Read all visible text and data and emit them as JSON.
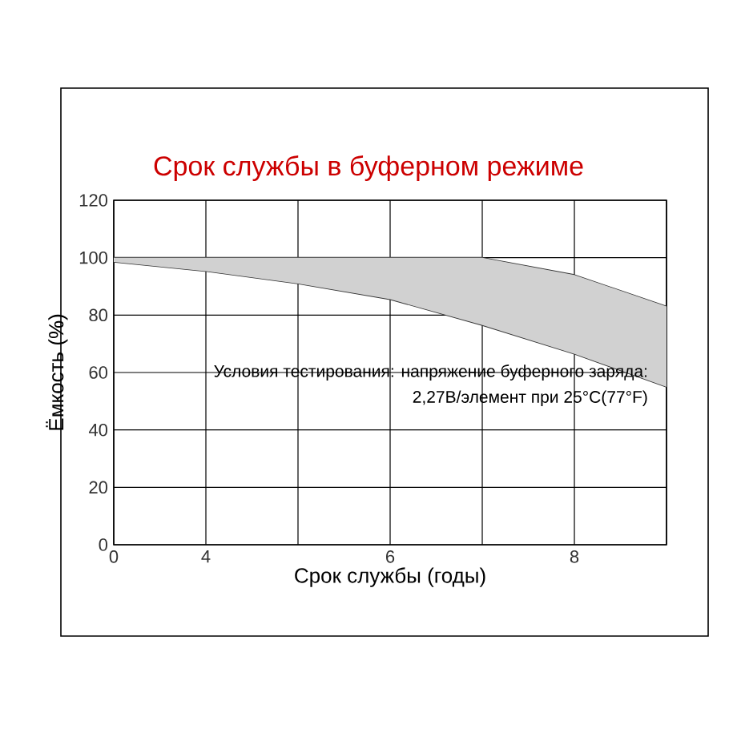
{
  "chart_data": {
    "type": "line",
    "title": "Срок службы в буферном режиме",
    "xlabel": "Срок службы (годы)",
    "ylabel": "Ёмкость (%)",
    "annotations": [
      "Условия тестирования: напряжение буферного заряда:",
      "2,27В/элемент при 25°C(77°F)"
    ],
    "categories": [
      "0",
      "4",
      null,
      "6",
      null,
      "8",
      null
    ],
    "ylim": [
      0,
      120
    ],
    "yticks": [
      0,
      20,
      40,
      60,
      80,
      100,
      120
    ],
    "grid": true,
    "marker": "none",
    "line_style": "solid",
    "series": [
      {
        "color": "#333333",
        "values": [
          98.5,
          95.3,
          91,
          85.5,
          76.5,
          66.5,
          55
        ]
      },
      {
        "color": "#333333",
        "values": [
          100,
          100,
          100,
          100,
          100,
          94,
          83
        ],
        "lower": [
          98.5,
          95.3,
          91,
          85.5,
          76.5,
          66.5,
          55
        ],
        "upper": [
          100,
          100,
          100,
          100,
          100,
          94,
          83
        ]
      }
    ]
  }
}
